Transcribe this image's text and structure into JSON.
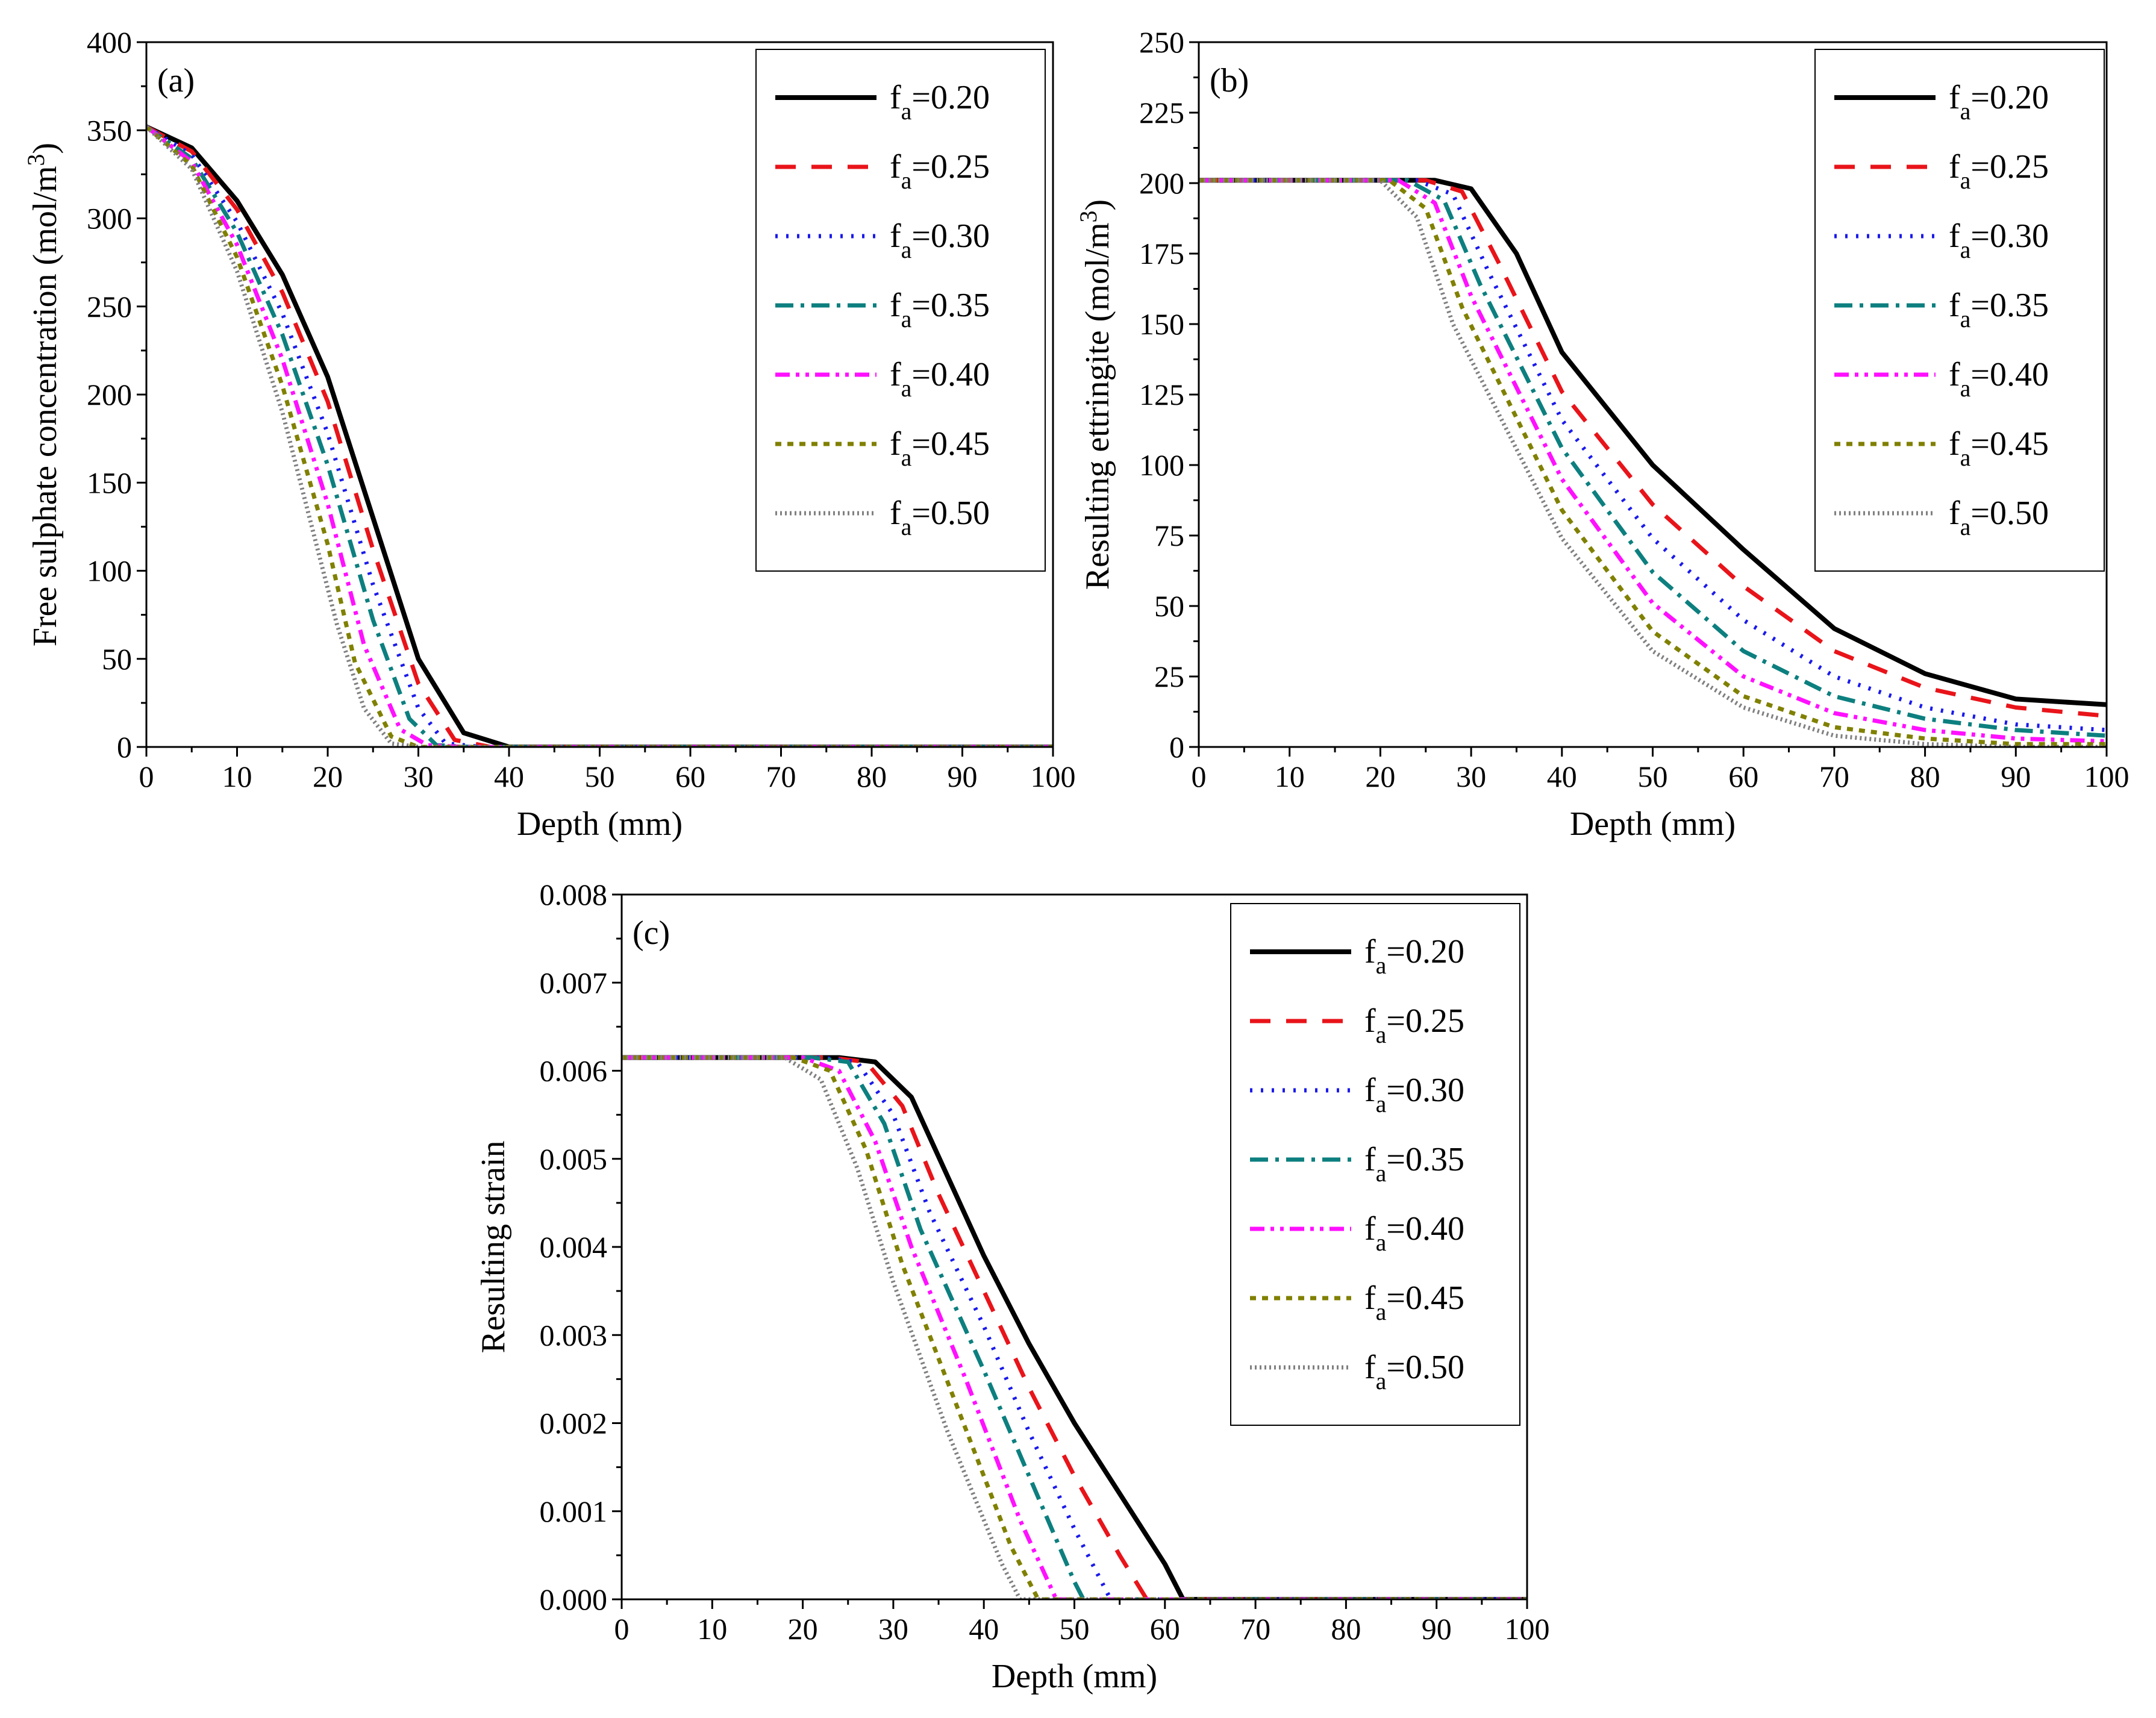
{
  "chart_data": [
    {
      "type": "line",
      "panel_label": "(a)",
      "xlabel": "Depth (mm)",
      "ylabel": "Free sulphate concentration (mol/m",
      "ylabel_sup": "3",
      "ylabel_close": ")",
      "xlim": [
        0,
        100
      ],
      "ylim": [
        0,
        400
      ],
      "xticks": [
        0,
        10,
        20,
        30,
        40,
        50,
        60,
        70,
        80,
        90,
        100
      ],
      "yticks": [
        0,
        50,
        100,
        150,
        200,
        250,
        300,
        350,
        400
      ],
      "legend_position": "top-right",
      "series": [
        {
          "name": "fa=0.20",
          "x": [
            0,
            5,
            10,
            15,
            20,
            25,
            30,
            35,
            40,
            100
          ],
          "y": [
            352,
            340,
            310,
            268,
            210,
            130,
            50,
            8,
            0,
            0
          ]
        },
        {
          "name": "fa=0.25",
          "x": [
            0,
            5,
            10,
            15,
            20,
            25,
            30,
            34,
            38,
            100
          ],
          "y": [
            352,
            338,
            305,
            258,
            196,
            112,
            36,
            4,
            0,
            0
          ]
        },
        {
          "name": "fa=0.30",
          "x": [
            0,
            5,
            10,
            15,
            20,
            25,
            30,
            33,
            37,
            100
          ],
          "y": [
            352,
            336,
            298,
            246,
            178,
            92,
            22,
            2,
            0,
            0
          ]
        },
        {
          "name": "fa=0.35",
          "x": [
            0,
            5,
            10,
            15,
            20,
            25,
            29,
            32,
            36,
            100
          ],
          "y": [
            352,
            334,
            292,
            234,
            160,
            72,
            16,
            1,
            0,
            0
          ]
        },
        {
          "name": "fa=0.40",
          "x": [
            0,
            5,
            10,
            15,
            20,
            24,
            28,
            31,
            35,
            100
          ],
          "y": [
            352,
            332,
            285,
            220,
            138,
            58,
            10,
            1,
            0,
            0
          ]
        },
        {
          "name": "fa=0.45",
          "x": [
            0,
            5,
            10,
            15,
            20,
            23,
            27,
            30,
            34,
            100
          ],
          "y": [
            352,
            330,
            278,
            205,
            115,
            48,
            6,
            0,
            0,
            0
          ]
        },
        {
          "name": "fa=0.50",
          "x": [
            0,
            5,
            10,
            15,
            18,
            21,
            24,
            27,
            30,
            100
          ],
          "y": [
            352,
            328,
            270,
            190,
            130,
            70,
            22,
            2,
            0,
            0
          ]
        }
      ]
    },
    {
      "type": "line",
      "panel_label": "(b)",
      "xlabel": "Depth (mm)",
      "ylabel": "Resulting ettringite (mol/m",
      "ylabel_sup": "3",
      "ylabel_close": ")",
      "xlim": [
        0,
        100
      ],
      "ylim": [
        0,
        250
      ],
      "xticks": [
        0,
        10,
        20,
        30,
        40,
        50,
        60,
        70,
        80,
        90,
        100
      ],
      "yticks": [
        0,
        25,
        50,
        75,
        100,
        125,
        150,
        175,
        200,
        225,
        250
      ],
      "legend_position": "top-right",
      "series": [
        {
          "name": "fa=0.20",
          "x": [
            0,
            26,
            30,
            35,
            40,
            50,
            60,
            70,
            80,
            90,
            100
          ],
          "y": [
            201,
            201,
            198,
            175,
            140,
            100,
            70,
            42,
            26,
            17,
            15
          ]
        },
        {
          "name": "fa=0.25",
          "x": [
            0,
            25,
            29,
            33,
            40,
            50,
            60,
            70,
            80,
            90,
            100
          ],
          "y": [
            201,
            201,
            197,
            172,
            126,
            86,
            57,
            34,
            21,
            14,
            11
          ]
        },
        {
          "name": "fa=0.30",
          "x": [
            0,
            24,
            28,
            32,
            40,
            50,
            60,
            70,
            80,
            90,
            100
          ],
          "y": [
            201,
            201,
            196,
            168,
            116,
            74,
            45,
            25,
            14,
            8,
            6
          ]
        },
        {
          "name": "fa=0.35",
          "x": [
            0,
            23,
            27,
            31,
            40,
            50,
            60,
            70,
            80,
            90,
            100
          ],
          "y": [
            201,
            201,
            194,
            164,
            106,
            62,
            34,
            18,
            10,
            6,
            4
          ]
        },
        {
          "name": "fa=0.40",
          "x": [
            0,
            22,
            26,
            30,
            40,
            50,
            60,
            70,
            80,
            90,
            100
          ],
          "y": [
            201,
            201,
            193,
            160,
            95,
            51,
            25,
            12,
            6,
            3,
            2
          ]
        },
        {
          "name": "fa=0.45",
          "x": [
            0,
            21,
            25,
            29,
            40,
            50,
            60,
            70,
            80,
            90,
            100
          ],
          "y": [
            201,
            201,
            191,
            156,
            84,
            41,
            18,
            7,
            3,
            1,
            1
          ]
        },
        {
          "name": "fa=0.50",
          "x": [
            0,
            20,
            24,
            28,
            40,
            50,
            60,
            70,
            80,
            90,
            100
          ],
          "y": [
            201,
            201,
            188,
            150,
            74,
            34,
            14,
            4,
            1,
            0,
            0
          ]
        }
      ]
    },
    {
      "type": "line",
      "panel_label": "(c)",
      "xlabel": "Depth (mm)",
      "ylabel": "Resulting strain",
      "xlim": [
        0,
        100
      ],
      "ylim": [
        0,
        0.008
      ],
      "xticks": [
        0,
        10,
        20,
        30,
        40,
        50,
        60,
        70,
        80,
        90,
        100
      ],
      "yticks": [
        0.0,
        0.001,
        0.002,
        0.003,
        0.004,
        0.005,
        0.006,
        0.007,
        0.008
      ],
      "ytick_labels": [
        "0.000",
        "0.001",
        "0.002",
        "0.003",
        "0.004",
        "0.005",
        "0.006",
        "0.007",
        "0.008"
      ],
      "legend_position": "top-right",
      "series": [
        {
          "name": "fa=0.20",
          "x": [
            0,
            24,
            28,
            32,
            36,
            40,
            45,
            50,
            55,
            60,
            62,
            100
          ],
          "y": [
            0.00615,
            0.00615,
            0.0061,
            0.0057,
            0.0048,
            0.0039,
            0.0029,
            0.002,
            0.0012,
            0.0004,
            0.0,
            0.0
          ]
        },
        {
          "name": "fa=0.25",
          "x": [
            0,
            23,
            27,
            31,
            35,
            40,
            45,
            50,
            55,
            58,
            100
          ],
          "y": [
            0.00615,
            0.00615,
            0.0061,
            0.0056,
            0.0046,
            0.0035,
            0.0024,
            0.0014,
            0.0005,
            0.0,
            0.0
          ]
        },
        {
          "name": "fa=0.30",
          "x": [
            0,
            22,
            26,
            30,
            34,
            40,
            45,
            50,
            54,
            100
          ],
          "y": [
            0.00615,
            0.00615,
            0.0061,
            0.0055,
            0.0044,
            0.0031,
            0.0019,
            0.0008,
            0.0,
            0.0
          ]
        },
        {
          "name": "fa=0.35",
          "x": [
            0,
            21,
            25,
            29,
            33,
            40,
            45,
            50,
            51,
            100
          ],
          "y": [
            0.00615,
            0.00615,
            0.0061,
            0.0054,
            0.0042,
            0.0026,
            0.0014,
            0.0002,
            0.0,
            0.0
          ]
        },
        {
          "name": "fa=0.40",
          "x": [
            0,
            20,
            24,
            28,
            32,
            38,
            44,
            48,
            100
          ],
          "y": [
            0.00615,
            0.00615,
            0.006,
            0.0052,
            0.004,
            0.0025,
            0.0009,
            0.0,
            0.0
          ]
        },
        {
          "name": "fa=0.45",
          "x": [
            0,
            19,
            23,
            27,
            31,
            37,
            43,
            46,
            100
          ],
          "y": [
            0.00615,
            0.00615,
            0.006,
            0.0051,
            0.0038,
            0.0022,
            0.0006,
            0.0,
            0.0
          ]
        },
        {
          "name": "fa=0.50",
          "x": [
            0,
            18,
            22,
            26,
            30,
            36,
            42,
            44,
            100
          ],
          "y": [
            0.00615,
            0.00615,
            0.0059,
            0.0049,
            0.0036,
            0.0019,
            0.0004,
            0.0,
            0.0
          ]
        }
      ]
    }
  ],
  "legend": {
    "entries": [
      {
        "base": "f",
        "sub": "a",
        "value": "=0.20"
      },
      {
        "base": "f",
        "sub": "a",
        "value": "=0.25"
      },
      {
        "base": "f",
        "sub": "a",
        "value": "=0.30"
      },
      {
        "base": "f",
        "sub": "a",
        "value": "=0.35"
      },
      {
        "base": "f",
        "sub": "a",
        "value": "=0.40"
      },
      {
        "base": "f",
        "sub": "a",
        "value": "=0.45"
      },
      {
        "base": "f",
        "sub": "a",
        "value": "=0.50"
      }
    ]
  },
  "series_styles": [
    {
      "color": "#000000",
      "dash": "none"
    },
    {
      "color": "#e8141a",
      "dash": "34,26"
    },
    {
      "color": "#1a1aeb",
      "dash": "4,14"
    },
    {
      "color": "#0d7f7f",
      "dash": "30,12,6,12"
    },
    {
      "color": "#ff10ff",
      "dash": "24,10,6,10,6,10"
    },
    {
      "color": "#808000",
      "dash": "10,10"
    },
    {
      "color": "#808080",
      "dash": "3,5"
    }
  ]
}
